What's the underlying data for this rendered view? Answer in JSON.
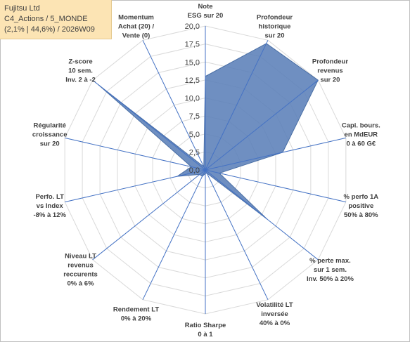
{
  "header": {
    "line1": "Fujitsu Ltd",
    "line2": "C4_Actions / 5_MONDE",
    "line3": "(2,1% | 44,6%) / 2026W09"
  },
  "colors": {
    "series_fill": "#5b7fb8",
    "series_stroke": "#4a6fa5",
    "grid": "#d9d9d9",
    "spoke": "#4472c4",
    "header_bg": "#fce4b4"
  },
  "chart_data": {
    "type": "radar",
    "r_min": 0,
    "r_max": 20,
    "r_step": 2.5,
    "tick_labels": [
      "0,0",
      "2,5",
      "5,0",
      "7,5",
      "10,0",
      "12,5",
      "15,0",
      "17,5",
      "20,0"
    ],
    "axes": [
      [
        "Note",
        "ESG sur 20"
      ],
      [
        "Profondeur",
        "historique",
        "sur 20"
      ],
      [
        "Profondeur",
        "revenus",
        "sur 20"
      ],
      [
        "Capi. bours.",
        "en MdEUR",
        "0 à 60 G€"
      ],
      [
        "% perfo 1A",
        "positive",
        "50% à 80%"
      ],
      [
        "% perte max.",
        "sur 1 sem.",
        "Inv. 50% à 20%"
      ],
      [
        "Volatilité LT",
        "inversée",
        "40% à 0%"
      ],
      [
        "Ratio Sharpe",
        "0 à 1"
      ],
      [
        "Rendement LT",
        "0% à 20%"
      ],
      [
        "Niveau LT",
        "revenus",
        "reccurents",
        "0% à 6%"
      ],
      [
        "Perfo. LT",
        "vs Index",
        "-8% à 12%"
      ],
      [
        "Régularité",
        "croissance",
        "sur 20"
      ],
      [
        "Z-score",
        "10 sem.",
        "Inv. 2 à -2"
      ],
      [
        "Momentum",
        "Achat (20) /",
        "Vente (0)"
      ]
    ],
    "series": [
      {
        "values": [
          13,
          19.5,
          20,
          11,
          2,
          11,
          0.5,
          0.5,
          1,
          1,
          4,
          2,
          19,
          0.5
        ]
      }
    ]
  }
}
